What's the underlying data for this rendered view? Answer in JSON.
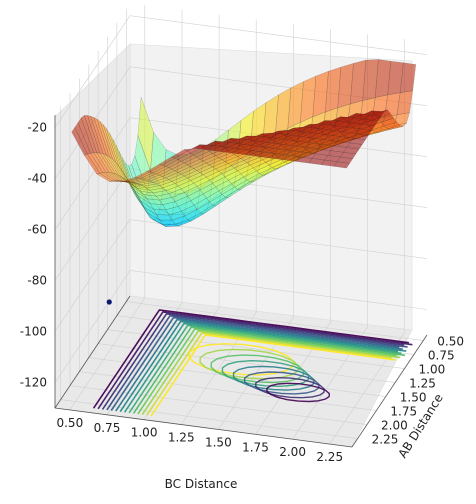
{
  "chart_data": {
    "type": "surface",
    "title": "",
    "xlabel": "BC Distance",
    "ylabel": "AB Distance",
    "zlabel": "",
    "x_ticks": [
      "0.50",
      "0.75",
      "1.00",
      "1.25",
      "1.50",
      "1.75",
      "2.00",
      "2.25"
    ],
    "y_ticks": [
      "0.50",
      "0.75",
      "1.00",
      "1.25",
      "1.50",
      "1.75",
      "2.00",
      "2.25"
    ],
    "z_ticks": [
      "-20",
      "-40",
      "-60",
      "-80",
      "-100",
      "-120"
    ],
    "xlim": [
      0.4,
      2.4
    ],
    "ylim": [
      0.4,
      2.4
    ],
    "zlim": [
      -130,
      -15
    ],
    "grid": true,
    "surface_colormap": "jet",
    "contour_colormap": "viridis",
    "contour_offset": -130,
    "marker": {
      "x": 0.74,
      "y": 2.3,
      "z": -88,
      "color": "#0b1a6e"
    }
  }
}
